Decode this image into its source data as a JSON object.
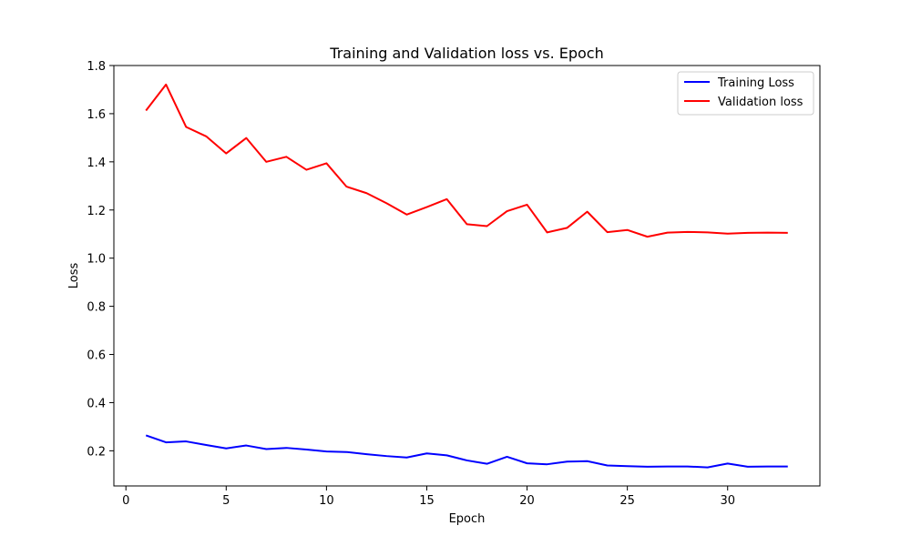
{
  "chart_data": {
    "type": "line",
    "title": "Training and Validation loss vs. Epoch",
    "xlabel": "Epoch",
    "ylabel": "Loss",
    "xlim": [
      -0.6,
      34.6
    ],
    "ylim": [
      0.054,
      1.8
    ],
    "xticks": [
      0,
      5,
      10,
      15,
      20,
      25,
      30
    ],
    "xtick_labels": [
      "0",
      "5",
      "10",
      "15",
      "20",
      "25",
      "30"
    ],
    "yticks": [
      0.2,
      0.4,
      0.6,
      0.8,
      1.0,
      1.2,
      1.4,
      1.6,
      1.8
    ],
    "ytick_labels": [
      "0.2",
      "0.4",
      "0.6",
      "0.8",
      "1.0",
      "1.2",
      "1.4",
      "1.6",
      "1.8"
    ],
    "grid": false,
    "legend_position": "upper right",
    "x": [
      1,
      2,
      3,
      4,
      5,
      6,
      7,
      8,
      9,
      10,
      11,
      12,
      13,
      14,
      15,
      16,
      17,
      18,
      19,
      20,
      21,
      22,
      23,
      24,
      25,
      26,
      27,
      28,
      29,
      30,
      31,
      32,
      33
    ],
    "series": [
      {
        "name": "Training Loss",
        "color": "#0000ff",
        "values": [
          0.264,
          0.235,
          0.239,
          0.224,
          0.21,
          0.222,
          0.207,
          0.212,
          0.205,
          0.197,
          0.195,
          0.186,
          0.178,
          0.172,
          0.189,
          0.181,
          0.16,
          0.146,
          0.175,
          0.148,
          0.144,
          0.155,
          0.157,
          0.139,
          0.136,
          0.134,
          0.135,
          0.135,
          0.131,
          0.147,
          0.134,
          0.135,
          0.135
        ]
      },
      {
        "name": "Validation loss",
        "color": "#ff0000",
        "values": [
          1.613,
          1.721,
          1.545,
          1.506,
          1.435,
          1.499,
          1.4,
          1.421,
          1.367,
          1.394,
          1.297,
          1.27,
          1.228,
          1.181,
          1.212,
          1.245,
          1.141,
          1.133,
          1.195,
          1.222,
          1.107,
          1.126,
          1.193,
          1.108,
          1.117,
          1.089,
          1.106,
          1.109,
          1.107,
          1.102,
          1.105,
          1.106,
          1.105
        ]
      }
    ]
  }
}
